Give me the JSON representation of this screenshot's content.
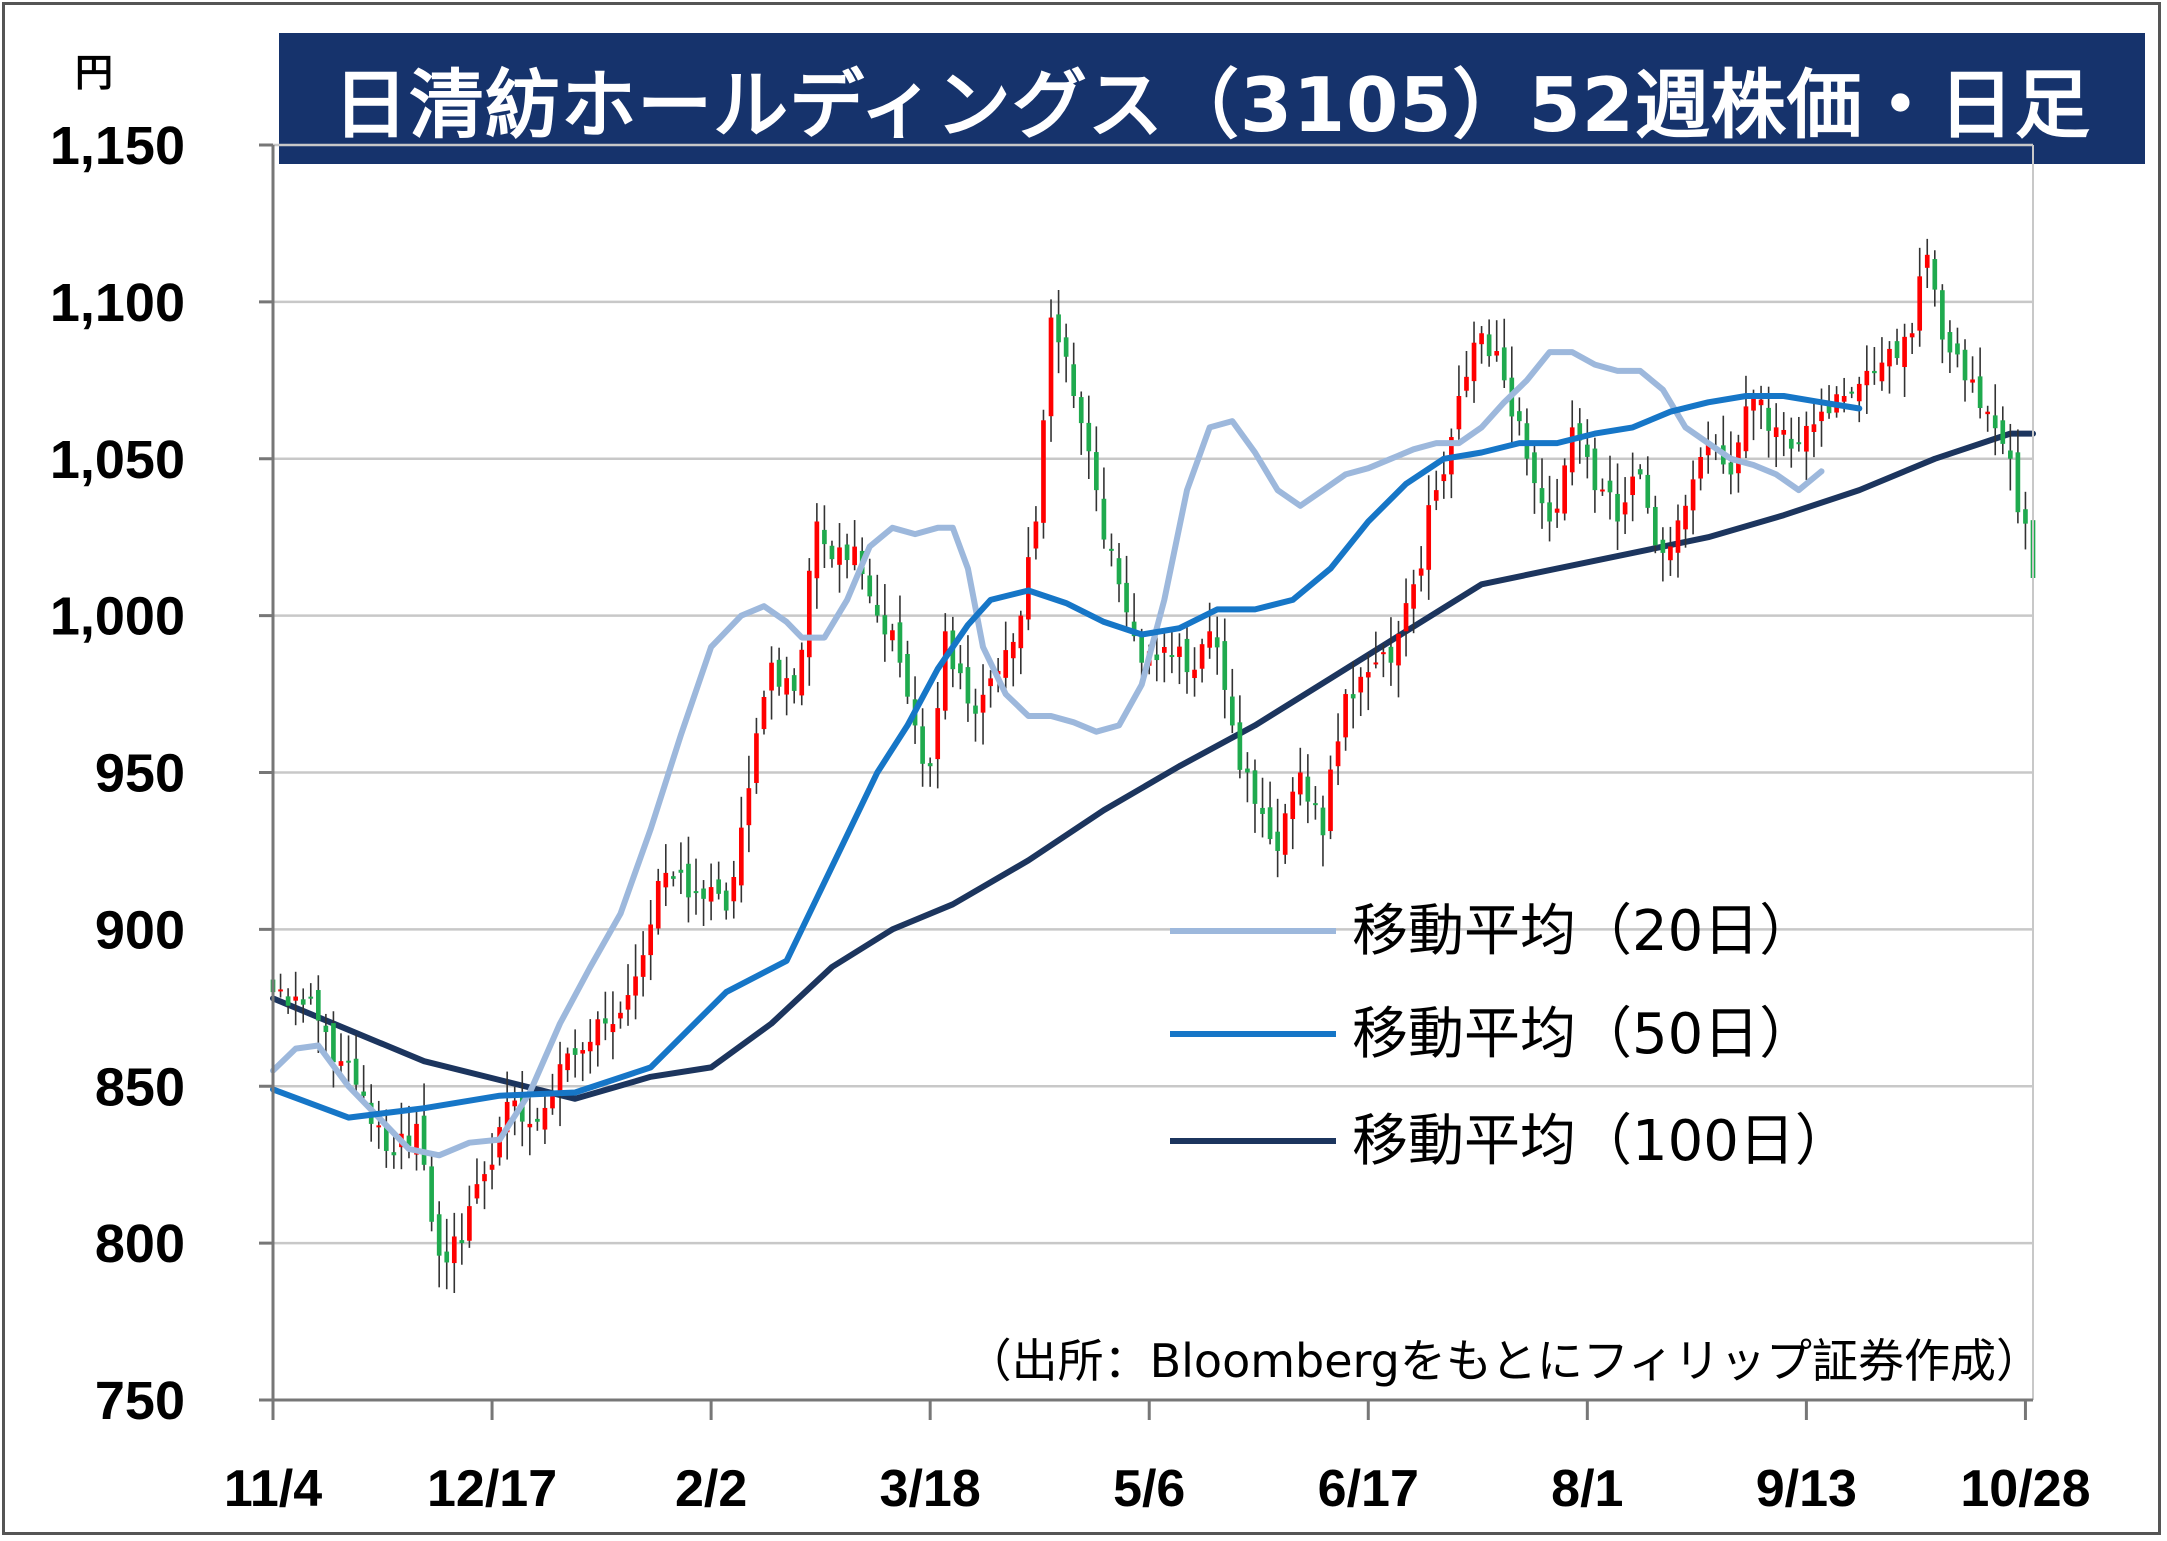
{
  "title": "日清紡ホールディングス（3105）52週株価・日足",
  "y_unit": "円",
  "source_note": "（出所：Bloombergをもとにフィリップ証券作成）",
  "legend": [
    {
      "label": "移動平均（20日）",
      "color": "#9db8dc"
    },
    {
      "label": "移動平均（50日）",
      "color": "#1676c7"
    },
    {
      "label": "移動平均（100日）",
      "color": "#1c355e"
    }
  ],
  "colors": {
    "up": "#ff0000",
    "down": "#1faa4e",
    "grid": "#c8c8c8",
    "title_bg": "#16336c"
  },
  "chart_data": {
    "type": "candlestick",
    "title": "日清紡ホールディングス（3105）52週株価・日足",
    "ylabel": "円",
    "ylim": [
      750,
      1150
    ],
    "yticks": [
      750,
      800,
      850,
      900,
      950,
      1000,
      1050,
      1100,
      1150
    ],
    "ytick_labels": [
      "750",
      "800",
      "850",
      "900",
      "950",
      "1,000",
      "1,050",
      "1,100",
      "1,150"
    ],
    "xticks": [
      "11/4",
      "12/17",
      "2/2",
      "3/18",
      "5/6",
      "6/17",
      "8/1",
      "9/13",
      "10/28"
    ],
    "xtick_index": [
      0,
      29,
      58,
      87,
      116,
      145,
      174,
      203,
      232
    ],
    "num_days": 234,
    "grid": true,
    "legend_position": "center-right",
    "ohlc_anchors": [
      {
        "i": 0,
        "c": 880
      },
      {
        "i": 4,
        "c": 876
      },
      {
        "i": 9,
        "c": 858
      },
      {
        "i": 13,
        "c": 838
      },
      {
        "i": 16,
        "c": 828
      },
      {
        "i": 19,
        "c": 838
      },
      {
        "i": 22,
        "c": 796
      },
      {
        "i": 25,
        "c": 800
      },
      {
        "i": 28,
        "c": 822
      },
      {
        "i": 31,
        "c": 845
      },
      {
        "i": 34,
        "c": 838
      },
      {
        "i": 37,
        "c": 848
      },
      {
        "i": 40,
        "c": 860
      },
      {
        "i": 44,
        "c": 870
      },
      {
        "i": 48,
        "c": 885
      },
      {
        "i": 52,
        "c": 918
      },
      {
        "i": 56,
        "c": 912
      },
      {
        "i": 60,
        "c": 906
      },
      {
        "i": 63,
        "c": 945
      },
      {
        "i": 66,
        "c": 985
      },
      {
        "i": 69,
        "c": 976
      },
      {
        "i": 72,
        "c": 1030
      },
      {
        "i": 74,
        "c": 1018
      },
      {
        "i": 77,
        "c": 1022
      },
      {
        "i": 80,
        "c": 1000
      },
      {
        "i": 83,
        "c": 985
      },
      {
        "i": 85,
        "c": 965
      },
      {
        "i": 87,
        "c": 952
      },
      {
        "i": 89,
        "c": 995
      },
      {
        "i": 92,
        "c": 972
      },
      {
        "i": 95,
        "c": 980
      },
      {
        "i": 99,
        "c": 1000
      },
      {
        "i": 101,
        "c": 1030
      },
      {
        "i": 103,
        "c": 1095
      },
      {
        "i": 106,
        "c": 1070
      },
      {
        "i": 109,
        "c": 1040
      },
      {
        "i": 112,
        "c": 1010
      },
      {
        "i": 115,
        "c": 985
      },
      {
        "i": 118,
        "c": 990
      },
      {
        "i": 121,
        "c": 982
      },
      {
        "i": 124,
        "c": 995
      },
      {
        "i": 127,
        "c": 965
      },
      {
        "i": 130,
        "c": 940
      },
      {
        "i": 133,
        "c": 925
      },
      {
        "i": 136,
        "c": 950
      },
      {
        "i": 139,
        "c": 930
      },
      {
        "i": 142,
        "c": 975
      },
      {
        "i": 145,
        "c": 982
      },
      {
        "i": 148,
        "c": 985
      },
      {
        "i": 151,
        "c": 1010
      },
      {
        "i": 154,
        "c": 1040
      },
      {
        "i": 157,
        "c": 1070
      },
      {
        "i": 160,
        "c": 1090
      },
      {
        "i": 163,
        "c": 1075
      },
      {
        "i": 166,
        "c": 1050
      },
      {
        "i": 169,
        "c": 1030
      },
      {
        "i": 172,
        "c": 1060
      },
      {
        "i": 175,
        "c": 1040
      },
      {
        "i": 178,
        "c": 1030
      },
      {
        "i": 181,
        "c": 1045
      },
      {
        "i": 184,
        "c": 1020
      },
      {
        "i": 187,
        "c": 1035
      },
      {
        "i": 190,
        "c": 1055
      },
      {
        "i": 193,
        "c": 1045
      },
      {
        "i": 196,
        "c": 1070
      },
      {
        "i": 199,
        "c": 1060
      },
      {
        "i": 202,
        "c": 1055
      },
      {
        "i": 205,
        "c": 1065
      },
      {
        "i": 208,
        "c": 1070
      },
      {
        "i": 211,
        "c": 1078
      },
      {
        "i": 214,
        "c": 1085
      },
      {
        "i": 217,
        "c": 1090
      },
      {
        "i": 219,
        "c": 1115
      },
      {
        "i": 221,
        "c": 1088
      },
      {
        "i": 224,
        "c": 1075
      },
      {
        "i": 227,
        "c": 1065
      },
      {
        "i": 230,
        "c": 1050
      },
      {
        "i": 233,
        "c": 1012
      }
    ],
    "series": [
      {
        "name": "移動平均（20日）",
        "window": 20,
        "points": [
          [
            0,
            855
          ],
          [
            3,
            862
          ],
          [
            6,
            863
          ],
          [
            10,
            850
          ],
          [
            14,
            840
          ],
          [
            18,
            830
          ],
          [
            22,
            828
          ],
          [
            26,
            832
          ],
          [
            30,
            833
          ],
          [
            34,
            848
          ],
          [
            38,
            870
          ],
          [
            42,
            888
          ],
          [
            46,
            905
          ],
          [
            50,
            932
          ],
          [
            54,
            962
          ],
          [
            58,
            990
          ],
          [
            62,
            1000
          ],
          [
            65,
            1003
          ],
          [
            68,
            998
          ],
          [
            70,
            993
          ],
          [
            73,
            993
          ],
          [
            76,
            1005
          ],
          [
            79,
            1022
          ],
          [
            82,
            1028
          ],
          [
            85,
            1026
          ],
          [
            88,
            1028
          ],
          [
            90,
            1028
          ],
          [
            92,
            1015
          ],
          [
            94,
            990
          ],
          [
            97,
            975
          ],
          [
            100,
            968
          ],
          [
            103,
            968
          ],
          [
            106,
            966
          ],
          [
            109,
            963
          ],
          [
            112,
            965
          ],
          [
            115,
            978
          ],
          [
            118,
            1005
          ],
          [
            121,
            1040
          ],
          [
            124,
            1060
          ],
          [
            127,
            1062
          ],
          [
            130,
            1052
          ],
          [
            133,
            1040
          ],
          [
            136,
            1035
          ],
          [
            139,
            1040
          ],
          [
            142,
            1045
          ],
          [
            145,
            1047
          ],
          [
            148,
            1050
          ],
          [
            151,
            1053
          ],
          [
            154,
            1055
          ],
          [
            157,
            1055
          ],
          [
            160,
            1060
          ],
          [
            163,
            1068
          ],
          [
            166,
            1075
          ],
          [
            169,
            1084
          ],
          [
            172,
            1084
          ],
          [
            175,
            1080
          ],
          [
            178,
            1078
          ],
          [
            181,
            1078
          ],
          [
            184,
            1072
          ],
          [
            187,
            1060
          ],
          [
            190,
            1055
          ],
          [
            193,
            1050
          ],
          [
            196,
            1048
          ],
          [
            199,
            1045
          ],
          [
            202,
            1040
          ],
          [
            205,
            1046
          ]
        ]
      },
      {
        "name": "移動平均（50日）",
        "window": 50,
        "points": [
          [
            0,
            849
          ],
          [
            10,
            840
          ],
          [
            20,
            843
          ],
          [
            30,
            847
          ],
          [
            40,
            848
          ],
          [
            50,
            856
          ],
          [
            60,
            880
          ],
          [
            68,
            890
          ],
          [
            72,
            910
          ],
          [
            76,
            930
          ],
          [
            80,
            950
          ],
          [
            84,
            965
          ],
          [
            88,
            983
          ],
          [
            92,
            997
          ],
          [
            95,
            1005
          ],
          [
            100,
            1008
          ],
          [
            105,
            1004
          ],
          [
            110,
            998
          ],
          [
            115,
            994
          ],
          [
            120,
            996
          ],
          [
            125,
            1002
          ],
          [
            130,
            1002
          ],
          [
            135,
            1005
          ],
          [
            140,
            1015
          ],
          [
            145,
            1030
          ],
          [
            150,
            1042
          ],
          [
            155,
            1050
          ],
          [
            160,
            1052
          ],
          [
            165,
            1055
          ],
          [
            170,
            1055
          ],
          [
            175,
            1058
          ],
          [
            180,
            1060
          ],
          [
            185,
            1065
          ],
          [
            190,
            1068
          ],
          [
            195,
            1070
          ],
          [
            200,
            1070
          ],
          [
            205,
            1068
          ],
          [
            210,
            1066
          ]
        ]
      },
      {
        "name": "移動平均（100日）",
        "window": 100,
        "points": [
          [
            0,
            878
          ],
          [
            10,
            868
          ],
          [
            20,
            858
          ],
          [
            30,
            852
          ],
          [
            40,
            846
          ],
          [
            50,
            853
          ],
          [
            58,
            856
          ],
          [
            66,
            870
          ],
          [
            74,
            888
          ],
          [
            82,
            900
          ],
          [
            90,
            908
          ],
          [
            100,
            922
          ],
          [
            110,
            938
          ],
          [
            120,
            952
          ],
          [
            130,
            965
          ],
          [
            140,
            980
          ],
          [
            150,
            995
          ],
          [
            160,
            1010
          ],
          [
            170,
            1015
          ],
          [
            180,
            1020
          ],
          [
            190,
            1025
          ],
          [
            200,
            1032
          ],
          [
            210,
            1040
          ],
          [
            220,
            1050
          ],
          [
            230,
            1058
          ],
          [
            233,
            1058
          ]
        ]
      }
    ]
  }
}
